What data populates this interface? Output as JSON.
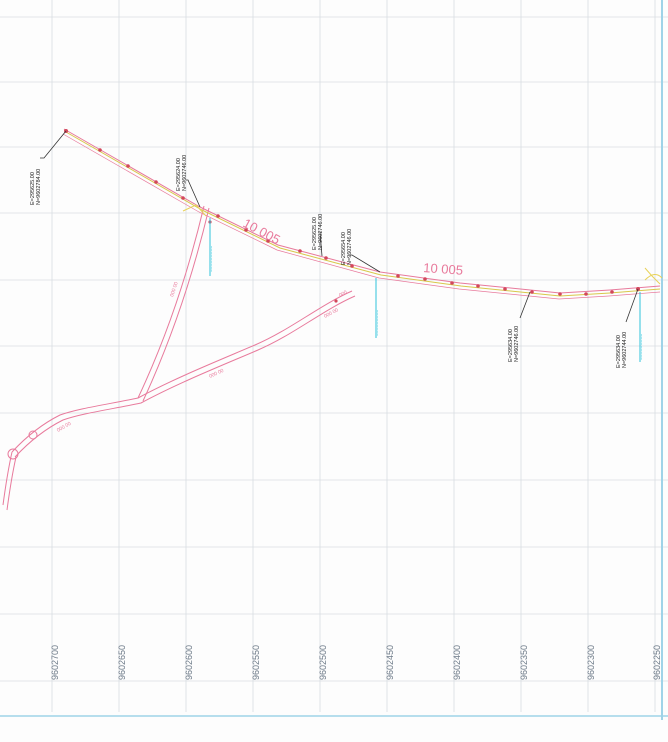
{
  "drawing": {
    "northing_labels": [
      "9602700",
      "9602650",
      "9602600",
      "9602550",
      "9602500",
      "9602450",
      "9602400",
      "9602350",
      "9602300",
      "9602250"
    ],
    "label_10005_upper": "10 005",
    "label_10005_lower": "10 005",
    "coord_labels": [
      {
        "e": "E=295625.00",
        "n": "N=9602784.00"
      },
      {
        "e": "E=295624.00",
        "n": "N=9602746.00"
      },
      {
        "e": "E=295625.00",
        "n": "N=9602746.00"
      },
      {
        "e": "E=295654.00",
        "n": "N=9602746.00"
      },
      {
        "e": "E=295634.00",
        "n": "N=9602746.00"
      },
      {
        "e": "E=295634.00",
        "n": "N=9602744.00"
      }
    ],
    "colors": {
      "grid": "#d9dde2",
      "pipeline_pink": "#e87a9c",
      "centerline_yellow": "#d8c84a",
      "marker_red": "#d2475b",
      "leader": "#333333",
      "cyan": "#2ec4dc",
      "frame_edge": "#9fd3e8"
    }
  }
}
